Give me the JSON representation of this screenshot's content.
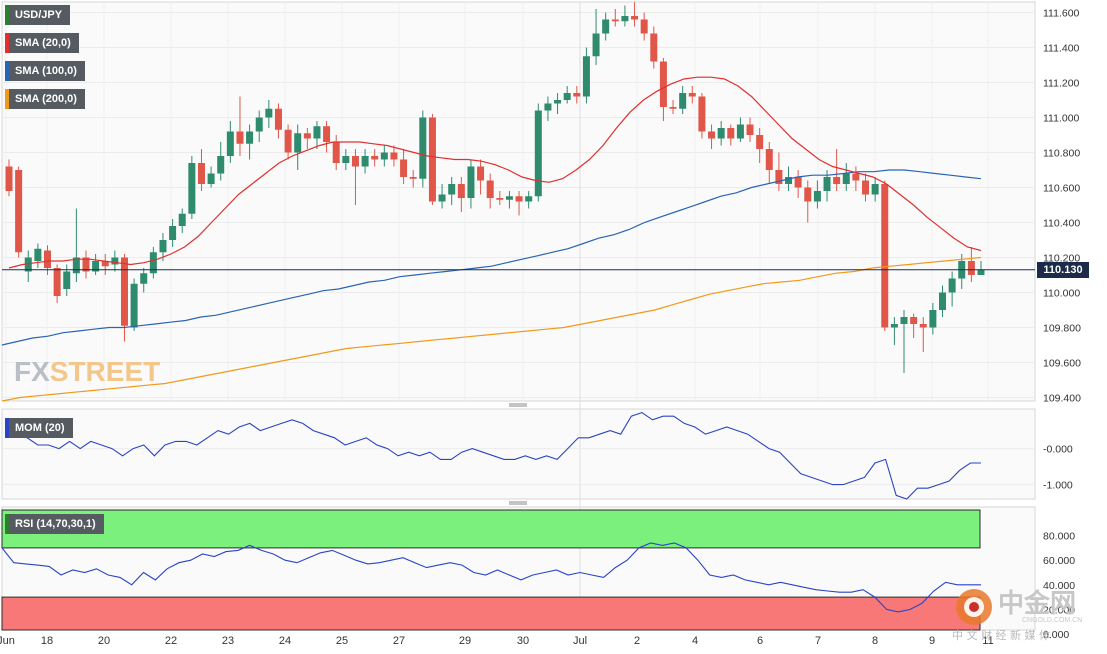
{
  "chart_data": [
    {
      "type": "candlestick",
      "instrument": "USD/JPY",
      "last_price": "110.130",
      "y_ticks": [
        "111.600",
        "111.400",
        "111.200",
        "111.000",
        "110.800",
        "110.600",
        "110.400",
        "110.200",
        "110.000",
        "109.800",
        "109.600",
        "109.400"
      ],
      "ylim": [
        109.38,
        111.66
      ],
      "x_tick_labels": [
        "Jun",
        "18",
        "20",
        "22",
        "23",
        "24",
        "25",
        "27",
        "29",
        "30",
        "Jul",
        "2",
        "4",
        "6",
        "7",
        "8",
        "9",
        "11"
      ],
      "indicators": [
        {
          "name": "SMA (20,0)",
          "color": "#e03030"
        },
        {
          "name": "SMA (100,0)",
          "color": "#2a64b4"
        },
        {
          "name": "SMA (200,0)",
          "color": "#f09a1c"
        }
      ],
      "candles": [
        [
          110.72,
          110.58,
          110.76,
          110.55
        ],
        [
          110.7,
          110.23,
          110.72,
          110.2
        ],
        [
          110.12,
          110.2,
          110.24,
          110.06
        ],
        [
          110.18,
          110.25,
          110.28,
          110.14
        ],
        [
          110.24,
          110.14,
          110.27,
          110.1
        ],
        [
          110.14,
          109.98,
          110.16,
          109.94
        ],
        [
          110.02,
          110.12,
          110.16,
          109.98
        ],
        [
          110.11,
          110.2,
          110.48,
          110.06
        ],
        [
          110.2,
          110.12,
          110.24,
          110.08
        ],
        [
          110.12,
          110.18,
          110.22,
          110.1
        ],
        [
          110.18,
          110.15,
          110.22,
          110.1
        ],
        [
          110.16,
          110.2,
          110.24,
          110.12
        ],
        [
          110.2,
          109.81,
          110.22,
          109.72
        ],
        [
          109.8,
          110.05,
          110.08,
          109.78
        ],
        [
          110.05,
          110.11,
          110.14,
          110.0
        ],
        [
          110.11,
          110.23,
          110.26,
          110.08
        ],
        [
          110.23,
          110.3,
          110.34,
          110.18
        ],
        [
          110.3,
          110.38,
          110.42,
          110.26
        ],
        [
          110.38,
          110.45,
          110.48,
          110.34
        ],
        [
          110.45,
          110.74,
          110.78,
          110.42
        ],
        [
          110.74,
          110.62,
          110.82,
          110.58
        ],
        [
          110.62,
          110.68,
          110.72,
          110.6
        ],
        [
          110.68,
          110.78,
          110.86,
          110.64
        ],
        [
          110.78,
          110.92,
          110.98,
          110.74
        ],
        [
          110.92,
          110.85,
          111.12,
          110.78
        ],
        [
          110.85,
          110.92,
          110.96,
          110.76
        ],
        [
          110.92,
          111.0,
          111.04,
          110.86
        ],
        [
          111.0,
          111.05,
          111.1,
          110.94
        ],
        [
          111.05,
          110.93,
          111.08,
          110.88
        ],
        [
          110.93,
          110.8,
          110.96,
          110.76
        ],
        [
          110.8,
          110.91,
          110.96,
          110.7
        ],
        [
          110.91,
          110.88,
          110.94,
          110.82
        ],
        [
          110.88,
          110.95,
          110.98,
          110.82
        ],
        [
          110.95,
          110.86,
          110.98,
          110.8
        ],
        [
          110.86,
          110.74,
          110.9,
          110.7
        ],
        [
          110.74,
          110.78,
          110.82,
          110.7
        ],
        [
          110.78,
          110.72,
          110.82,
          110.5
        ],
        [
          110.72,
          110.78,
          110.82,
          110.68
        ],
        [
          110.78,
          110.76,
          110.82,
          110.72
        ],
        [
          110.76,
          110.8,
          110.84,
          110.72
        ],
        [
          110.8,
          110.76,
          110.84,
          110.72
        ],
        [
          110.76,
          110.66,
          110.82,
          110.62
        ],
        [
          110.66,
          110.65,
          110.7,
          110.6
        ],
        [
          110.65,
          111.0,
          111.04,
          110.6
        ],
        [
          111.0,
          110.52,
          111.02,
          110.5
        ],
        [
          110.52,
          110.56,
          110.62,
          110.48
        ],
        [
          110.56,
          110.62,
          110.66,
          110.5
        ],
        [
          110.62,
          110.54,
          110.66,
          110.46
        ],
        [
          110.54,
          110.72,
          110.76,
          110.48
        ],
        [
          110.72,
          110.64,
          110.76,
          110.56
        ],
        [
          110.64,
          110.54,
          110.68,
          110.48
        ],
        [
          110.54,
          110.53,
          110.58,
          110.5
        ],
        [
          110.53,
          110.55,
          110.58,
          110.48
        ],
        [
          110.55,
          110.52,
          110.58,
          110.44
        ],
        [
          110.52,
          110.55,
          110.58,
          110.48
        ],
        [
          110.55,
          111.04,
          111.08,
          110.52
        ],
        [
          111.04,
          111.08,
          111.12,
          110.98
        ],
        [
          111.08,
          111.1,
          111.14,
          111.02
        ],
        [
          111.1,
          111.14,
          111.18,
          111.08
        ],
        [
          111.14,
          111.12,
          111.18,
          111.08
        ],
        [
          111.12,
          111.35,
          111.4,
          111.08
        ],
        [
          111.35,
          111.48,
          111.62,
          111.3
        ],
        [
          111.48,
          111.56,
          111.6,
          111.44
        ],
        [
          111.56,
          111.55,
          111.62,
          111.52
        ],
        [
          111.55,
          111.58,
          111.64,
          111.52
        ],
        [
          111.58,
          111.56,
          111.66,
          111.52
        ],
        [
          111.56,
          111.48,
          111.6,
          111.44
        ],
        [
          111.48,
          111.32,
          111.52,
          111.28
        ],
        [
          111.32,
          111.06,
          111.34,
          110.98
        ],
        [
          111.06,
          111.05,
          111.1,
          111.02
        ],
        [
          111.05,
          111.14,
          111.18,
          111.02
        ],
        [
          111.14,
          111.12,
          111.18,
          111.08
        ],
        [
          111.12,
          110.92,
          111.14,
          110.88
        ],
        [
          110.92,
          110.88,
          110.96,
          110.82
        ],
        [
          110.88,
          110.94,
          110.98,
          110.84
        ],
        [
          110.94,
          110.88,
          110.96,
          110.84
        ],
        [
          110.88,
          110.96,
          111.0,
          110.86
        ],
        [
          110.96,
          110.9,
          111.0,
          110.86
        ],
        [
          110.9,
          110.82,
          110.94,
          110.74
        ],
        [
          110.82,
          110.7,
          110.86,
          110.62
        ],
        [
          110.7,
          110.62,
          110.8,
          110.58
        ],
        [
          110.62,
          110.66,
          110.72,
          110.58
        ],
        [
          110.66,
          110.6,
          110.7,
          110.54
        ],
        [
          110.6,
          110.52,
          110.64,
          110.4
        ],
        [
          110.52,
          110.58,
          110.64,
          110.48
        ],
        [
          110.58,
          110.66,
          110.7,
          110.52
        ],
        [
          110.66,
          110.62,
          110.82,
          110.58
        ],
        [
          110.62,
          110.68,
          110.74,
          110.58
        ],
        [
          110.68,
          110.64,
          110.72,
          110.58
        ],
        [
          110.64,
          110.56,
          110.68,
          110.52
        ],
        [
          110.56,
          110.62,
          110.66,
          110.52
        ],
        [
          110.62,
          109.8,
          110.64,
          109.78
        ],
        [
          109.8,
          109.82,
          109.86,
          109.7
        ],
        [
          109.82,
          109.86,
          109.9,
          109.54
        ],
        [
          109.86,
          109.82,
          109.88,
          109.74
        ],
        [
          109.82,
          109.8,
          109.86,
          109.66
        ],
        [
          109.8,
          109.9,
          109.94,
          109.76
        ],
        [
          109.9,
          110.0,
          110.04,
          109.86
        ],
        [
          110.0,
          110.08,
          110.12,
          109.92
        ],
        [
          110.08,
          110.18,
          110.22,
          110.02
        ],
        [
          110.18,
          110.1,
          110.26,
          110.06
        ],
        [
          110.1,
          110.13,
          110.18,
          110.1
        ]
      ],
      "sma20": [
        110.14,
        110.16,
        110.17,
        110.18,
        110.18,
        110.19,
        110.19,
        110.18,
        110.17,
        110.16,
        110.17,
        110.19,
        110.22,
        110.26,
        110.32,
        110.4,
        110.48,
        110.56,
        110.62,
        110.68,
        110.74,
        110.78,
        110.81,
        110.84,
        110.86,
        110.86,
        110.86,
        110.85,
        110.84,
        110.82,
        110.8,
        110.78,
        110.77,
        110.76,
        110.76,
        110.75,
        110.73,
        110.7,
        110.66,
        110.64,
        110.63,
        110.65,
        110.7,
        110.76,
        110.84,
        110.94,
        111.03,
        111.1,
        111.15,
        111.19,
        111.22,
        111.23,
        111.23,
        111.22,
        111.18,
        111.12,
        111.04,
        110.96,
        110.88,
        110.82,
        110.76,
        110.72,
        110.7,
        110.68,
        110.66,
        110.62,
        110.56,
        110.5,
        110.43,
        110.37,
        110.31,
        110.26,
        110.24
      ],
      "sma100": [
        109.7,
        109.72,
        109.74,
        109.75,
        109.77,
        109.78,
        109.79,
        109.8,
        109.8,
        109.81,
        109.82,
        109.83,
        109.84,
        109.86,
        109.87,
        109.89,
        109.91,
        109.93,
        109.95,
        109.97,
        109.99,
        110.01,
        110.02,
        110.04,
        110.06,
        110.07,
        110.09,
        110.1,
        110.11,
        110.12,
        110.13,
        110.14,
        110.15,
        110.17,
        110.19,
        110.21,
        110.23,
        110.25,
        110.28,
        110.31,
        110.33,
        110.36,
        110.4,
        110.43,
        110.46,
        110.49,
        110.52,
        110.55,
        110.57,
        110.6,
        110.62,
        110.64,
        110.66,
        110.67,
        110.67,
        110.68,
        110.69,
        110.69,
        110.7,
        110.7,
        110.69,
        110.68,
        110.67,
        110.66,
        110.65
      ],
      "sma200": [
        109.38,
        109.4,
        109.41,
        109.42,
        109.43,
        109.44,
        109.45,
        109.46,
        109.47,
        109.48,
        109.5,
        109.52,
        109.54,
        109.56,
        109.58,
        109.6,
        109.62,
        109.64,
        109.66,
        109.68,
        109.69,
        109.7,
        109.71,
        109.72,
        109.73,
        109.74,
        109.75,
        109.76,
        109.77,
        109.78,
        109.79,
        109.8,
        109.82,
        109.84,
        109.86,
        109.88,
        109.9,
        109.93,
        109.96,
        109.99,
        110.01,
        110.03,
        110.05,
        110.06,
        110.07,
        110.09,
        110.11,
        110.12,
        110.14,
        110.15,
        110.16,
        110.17,
        110.18,
        110.19,
        110.2
      ]
    },
    {
      "type": "line",
      "name": "MOM (20)",
      "y_ticks": [
        "-0.000",
        "-1.000"
      ],
      "ylim": [
        -1.4,
        1.1
      ],
      "values": [
        0.5,
        0.4,
        0.3,
        0.1,
        0.1,
        0.0,
        0.2,
        0.0,
        0.2,
        0.1,
        0.0,
        -0.2,
        0.0,
        0.1,
        -0.2,
        0.1,
        0.2,
        0.2,
        0.1,
        0.3,
        0.5,
        0.4,
        0.6,
        0.7,
        0.5,
        0.6,
        0.7,
        0.8,
        0.7,
        0.5,
        0.4,
        0.3,
        0.1,
        0.2,
        0.3,
        0.1,
        0.0,
        -0.2,
        -0.1,
        -0.2,
        -0.1,
        -0.3,
        -0.3,
        -0.1,
        0.0,
        -0.1,
        -0.2,
        -0.3,
        -0.3,
        -0.2,
        -0.3,
        -0.2,
        -0.3,
        0.0,
        0.3,
        0.3,
        0.4,
        0.5,
        0.4,
        0.9,
        1.0,
        0.8,
        0.9,
        0.9,
        0.7,
        0.6,
        0.4,
        0.5,
        0.6,
        0.5,
        0.4,
        0.2,
        0.0,
        -0.1,
        -0.4,
        -0.7,
        -0.8,
        -0.9,
        -1.0,
        -1.0,
        -0.9,
        -0.8,
        -0.4,
        -0.3,
        -1.3,
        -1.4,
        -1.1,
        -1.1,
        -1.0,
        -0.9,
        -0.6,
        -0.4,
        -0.4
      ]
    },
    {
      "type": "line",
      "name": "RSI (14,70,30,1)",
      "y_ticks": [
        "80.000",
        "60.000",
        "40.000",
        "20.000",
        "0.000"
      ],
      "ylim": [
        0,
        100
      ],
      "overbought": 70,
      "oversold": 30,
      "values": [
        70,
        58,
        57,
        56,
        55,
        48,
        52,
        50,
        53,
        48,
        46,
        40,
        50,
        44,
        53,
        58,
        60,
        65,
        63,
        67,
        68,
        72,
        68,
        65,
        60,
        58,
        62,
        66,
        68,
        64,
        60,
        57,
        58,
        60,
        62,
        58,
        54,
        56,
        58,
        56,
        50,
        48,
        52,
        48,
        44,
        48,
        50,
        52,
        48,
        50,
        48,
        46,
        54,
        60,
        70,
        74,
        72,
        74,
        70,
        60,
        48,
        46,
        48,
        44,
        42,
        40,
        42,
        40,
        38,
        36,
        35,
        34,
        34,
        36,
        30,
        20,
        18,
        20,
        25,
        35,
        42,
        40,
        40,
        40
      ]
    }
  ],
  "labels": {
    "instrument_tag": "USD/JPY",
    "sma20": "SMA (20,0)",
    "sma100": "SMA (100,0)",
    "sma200": "SMA (200,0)",
    "mom": "MOM (20)",
    "rsi": "RSI (14,70,30,1)",
    "brand": "FXSTREET",
    "price": "110.130"
  },
  "watermark": {
    "brand_cn": "中金网",
    "site": "CNGOLD.COM.CN",
    "tagline": "中 文 财 经 新 媒 体"
  }
}
